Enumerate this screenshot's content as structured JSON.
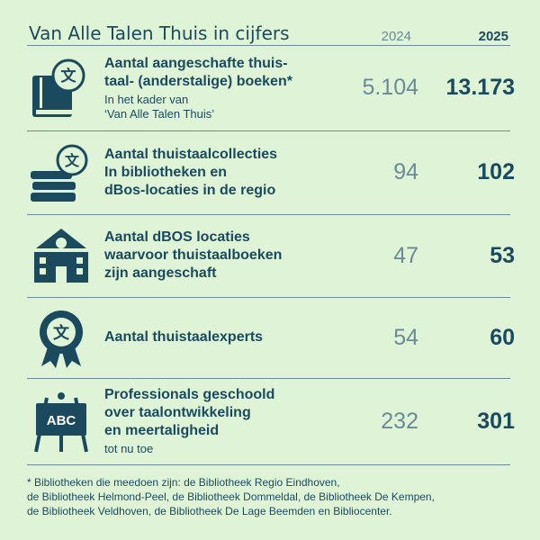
{
  "header": {
    "title": "Van Alle Talen Thuis in cijfers",
    "col_2024": "2024",
    "col_2025": "2025"
  },
  "table": {
    "rows": [
      {
        "label": [
          "Aantal aangeschafte thuis-",
          "taal- (anderstalige) boeken*"
        ],
        "note": [
          "In het kader van",
          "‘Van Alle Talen Thuis’"
        ],
        "v2024": "5.104",
        "v2025": "13.173"
      },
      {
        "label": [
          "Aantal thuistaalcollecties",
          "In bibliotheken en",
          "dBos-locaties in de regio"
        ],
        "note": [],
        "v2024": "94",
        "v2025": "102"
      },
      {
        "label": [
          "Aantal dBOS locaties",
          "waarvoor thuistaalboeken",
          "zijn aangeschaft"
        ],
        "note": [],
        "v2024": "47",
        "v2025": "53"
      },
      {
        "label": [
          "Aantal thuistaalexperts"
        ],
        "note": [],
        "v2024": "54",
        "v2025": "60"
      },
      {
        "label": [
          "Professionals geschoold",
          "over taalontwikkeling",
          "en meertaligheid"
        ],
        "note": [
          "tot nu toe"
        ],
        "v2024": "232",
        "v2025": "301"
      }
    ]
  },
  "footnote": [
    "* Bibliotheken die meedoen zijn: de Bibliotheek Regio Eindhoven,",
    "de Bibliotheek Helmond-Peel, de Bibliotheek Dommeldal, de Bibliotheek De Kempen,",
    "de Bibliotheek Veldhoven, de Bibliotheek De Lage Beemden en Bibliocenter."
  ]
}
